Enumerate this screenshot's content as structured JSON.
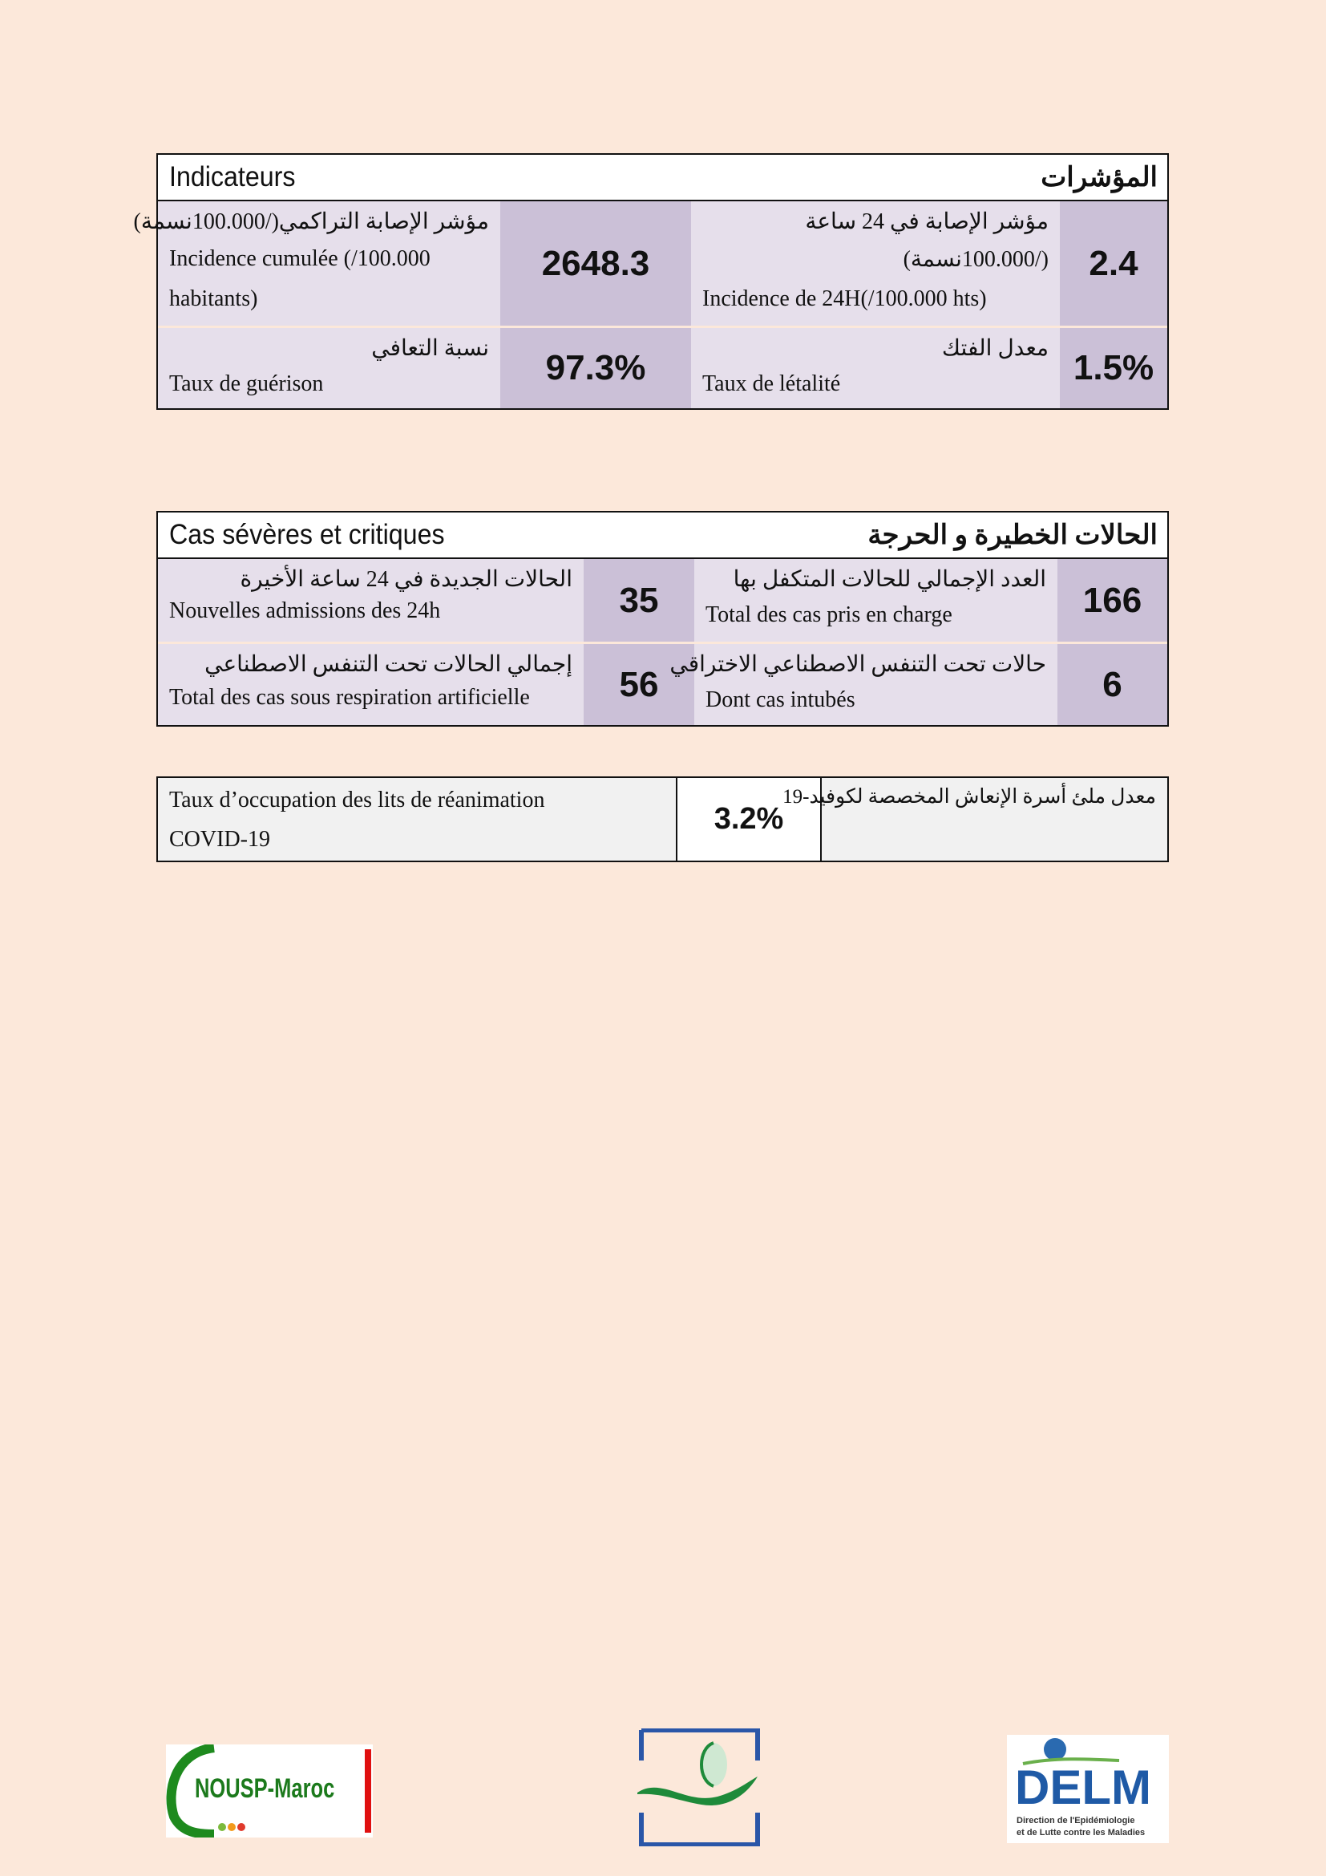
{
  "indicators": {
    "title_fr": "Indicateurs",
    "title_ar": "المؤشرات",
    "cumulative_incidence": {
      "label_ar": "مؤشر الإصابة التراكمي(/100.000نسمة)",
      "label_fr_1": "Incidence cumulée (/100.000",
      "label_fr_2": "habitants)",
      "value": "2648.3"
    },
    "incidence_24h": {
      "label_ar_1": "مؤشر الإصابة في 24 ساعة",
      "label_ar_2": "(/100.000نسمة)",
      "label_fr": "Incidence de 24H(/100.000 hts)",
      "value": "2.4"
    },
    "recovery_rate": {
      "label_ar": "نسبة  التعافي",
      "label_fr": "Taux de guérison",
      "value": "97.3%"
    },
    "fatality_rate": {
      "label_ar": "معدل الفتك",
      "label_fr": "Taux de létalité",
      "value": "1.5%"
    }
  },
  "severe": {
    "title_fr": "Cas sévères et critiques",
    "title_ar": "الحالات الخطيرة و الحرجة",
    "new_admissions": {
      "label_ar": "الحالات الجديدة في 24 ساعة الأخيرة",
      "label_fr": "Nouvelles admissions des 24h",
      "value": "35"
    },
    "total_managed": {
      "label_ar": "العدد الإجمالي للحالات المتكفل بها",
      "label_fr": "Total des cas pris en charge",
      "value": "166"
    },
    "artificial_respiration": {
      "label_ar": "إجمالي الحالات تحت التنفس الاصطناعي",
      "label_fr": "Total des cas sous respiration artificielle",
      "value": "56"
    },
    "intubated": {
      "label_ar": "حالات تحت التنفس الاصطناعي الاختراقي",
      "label_fr": "Dont cas intubés",
      "value": "6"
    }
  },
  "icu": {
    "label_fr_1": "Taux d’occupation des lits de réanimation",
    "label_fr_2": "COVID-19",
    "value": "3.2%",
    "label_ar": "معدل ملئ أسرة الإنعاش المخصصة لكوفيد-19"
  },
  "logos": {
    "left": "NOUSP-Maroc",
    "right": "DELM",
    "right_sub_1": "Direction de l'Epidémiologie",
    "right_sub_2": "et de Lutte contre les Maladies"
  }
}
